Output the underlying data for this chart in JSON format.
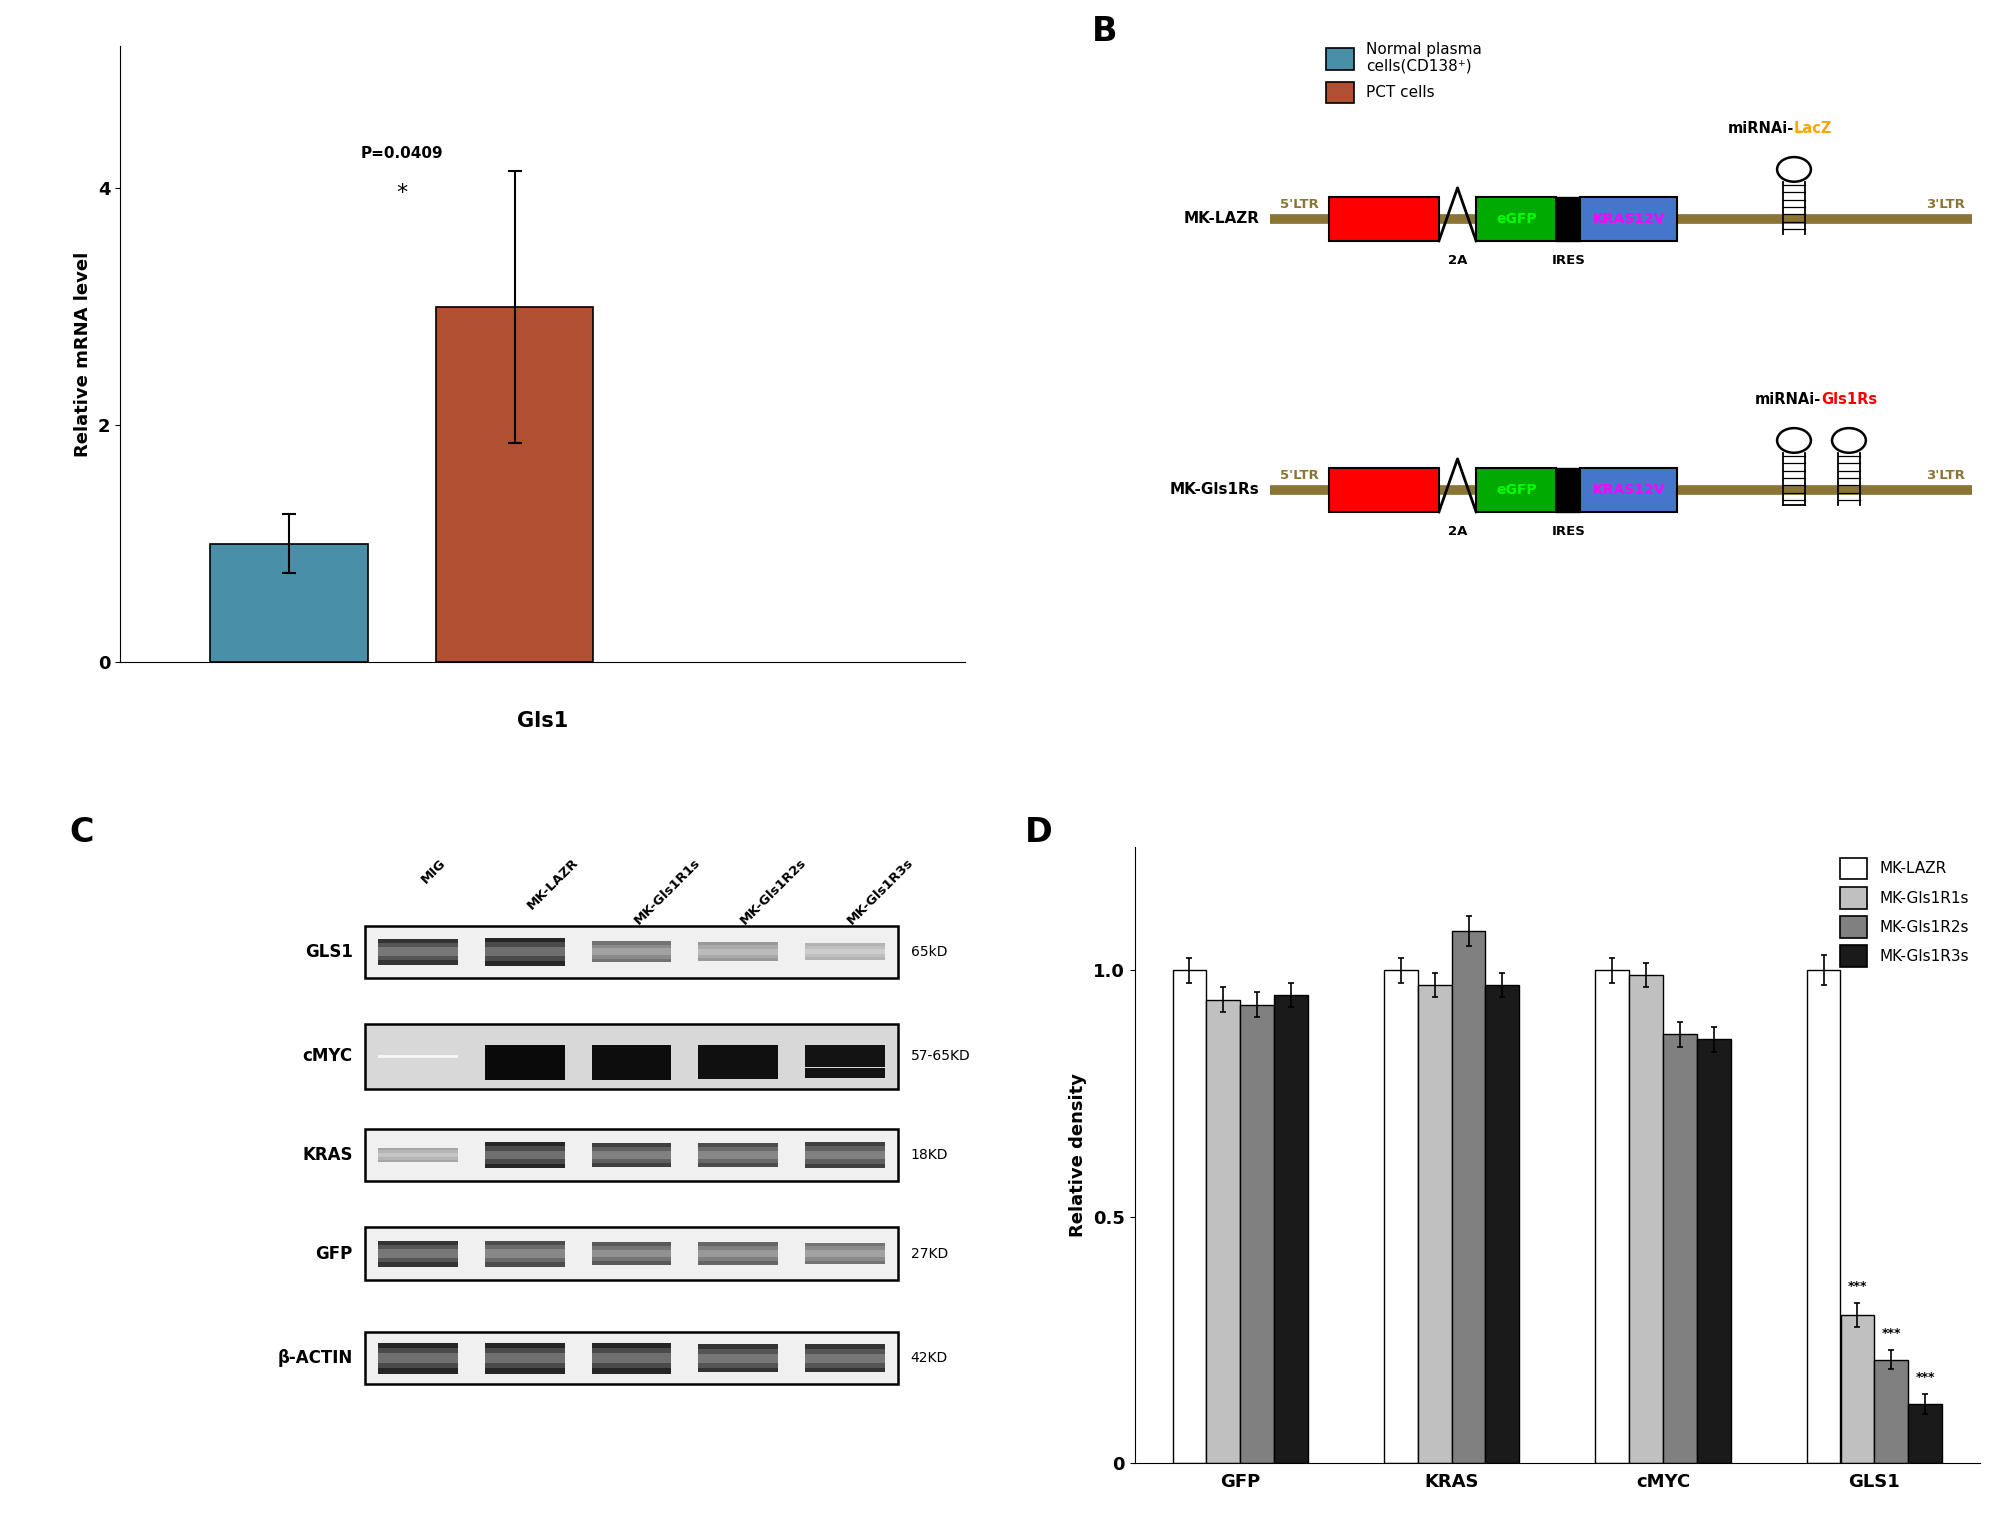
{
  "panel_A": {
    "bar_values": [
      1.0,
      3.0
    ],
    "bar_errors": [
      0.25,
      1.15
    ],
    "bar_colors": [
      "#4a8fa8",
      "#b05030"
    ],
    "ylabel": "Relative mRNA level",
    "xlabel": "Gls1",
    "ylim": [
      0,
      5.2
    ],
    "yticks": [
      0,
      2,
      4
    ],
    "legend_labels": [
      "Normal plasma\ncells(CD138⁺)",
      "PCT cells"
    ],
    "p_value_text": "P=0.0409",
    "star_text": "*"
  },
  "panel_B": {
    "ltr_color": "#8B7536",
    "cmyc_color": "#FF0000",
    "egfp_color": "#00AA00",
    "kras_color": "#FFDD00",
    "kras_box_color": "#4477CC",
    "mirna_lacz_color": "#FFA500",
    "mirna_gls1_color": "#FF0000",
    "row1_name": "MK-LAZR",
    "row2_name": "MK-Gls1Rs"
  },
  "panel_C": {
    "row_labels": [
      "GLS1",
      "cMYC",
      "KRAS",
      "GFP",
      "β-ACTIN"
    ],
    "col_labels": [
      "MIG",
      "MK-LAZR",
      "MK-Gls1R1s",
      "MK-Gls1R2s",
      "MK-Gls1R3s"
    ],
    "kd_labels": [
      "65kD",
      "57-65KD",
      "18KD",
      "27KD",
      "42KD"
    ]
  },
  "panel_D": {
    "groups": [
      "GFP",
      "KRAS",
      "cMYC",
      "GLS1"
    ],
    "series_labels": [
      "MK-LAZR",
      "MK-Gls1R1s",
      "MK-Gls1R2s",
      "MK-Gls1R3s"
    ],
    "series_colors": [
      "#FFFFFF",
      "#C0C0C0",
      "#808080",
      "#1A1A1A"
    ],
    "series_edge_colors": [
      "#000000",
      "#000000",
      "#000000",
      "#000000"
    ],
    "values": {
      "GFP": [
        1.0,
        0.94,
        0.93,
        0.95
      ],
      "KRAS": [
        1.0,
        0.97,
        1.08,
        0.97
      ],
      "cMYC": [
        1.0,
        0.99,
        0.87,
        0.86
      ],
      "GLS1": [
        1.0,
        0.3,
        0.21,
        0.12
      ]
    },
    "errors": {
      "GFP": [
        0.025,
        0.025,
        0.025,
        0.025
      ],
      "KRAS": [
        0.025,
        0.025,
        0.03,
        0.025
      ],
      "cMYC": [
        0.025,
        0.025,
        0.025,
        0.025
      ],
      "GLS1": [
        0.03,
        0.025,
        0.02,
        0.02
      ]
    },
    "significance": {
      "GFP": [
        "",
        "",
        "",
        ""
      ],
      "KRAS": [
        "",
        "",
        "",
        ""
      ],
      "cMYC": [
        "",
        "",
        "",
        ""
      ],
      "GLS1": [
        "",
        "***",
        "***",
        "***"
      ]
    },
    "ylabel": "Relative density",
    "ylim": [
      0,
      1.25
    ],
    "yticks": [
      0,
      0.5,
      1.0
    ]
  }
}
